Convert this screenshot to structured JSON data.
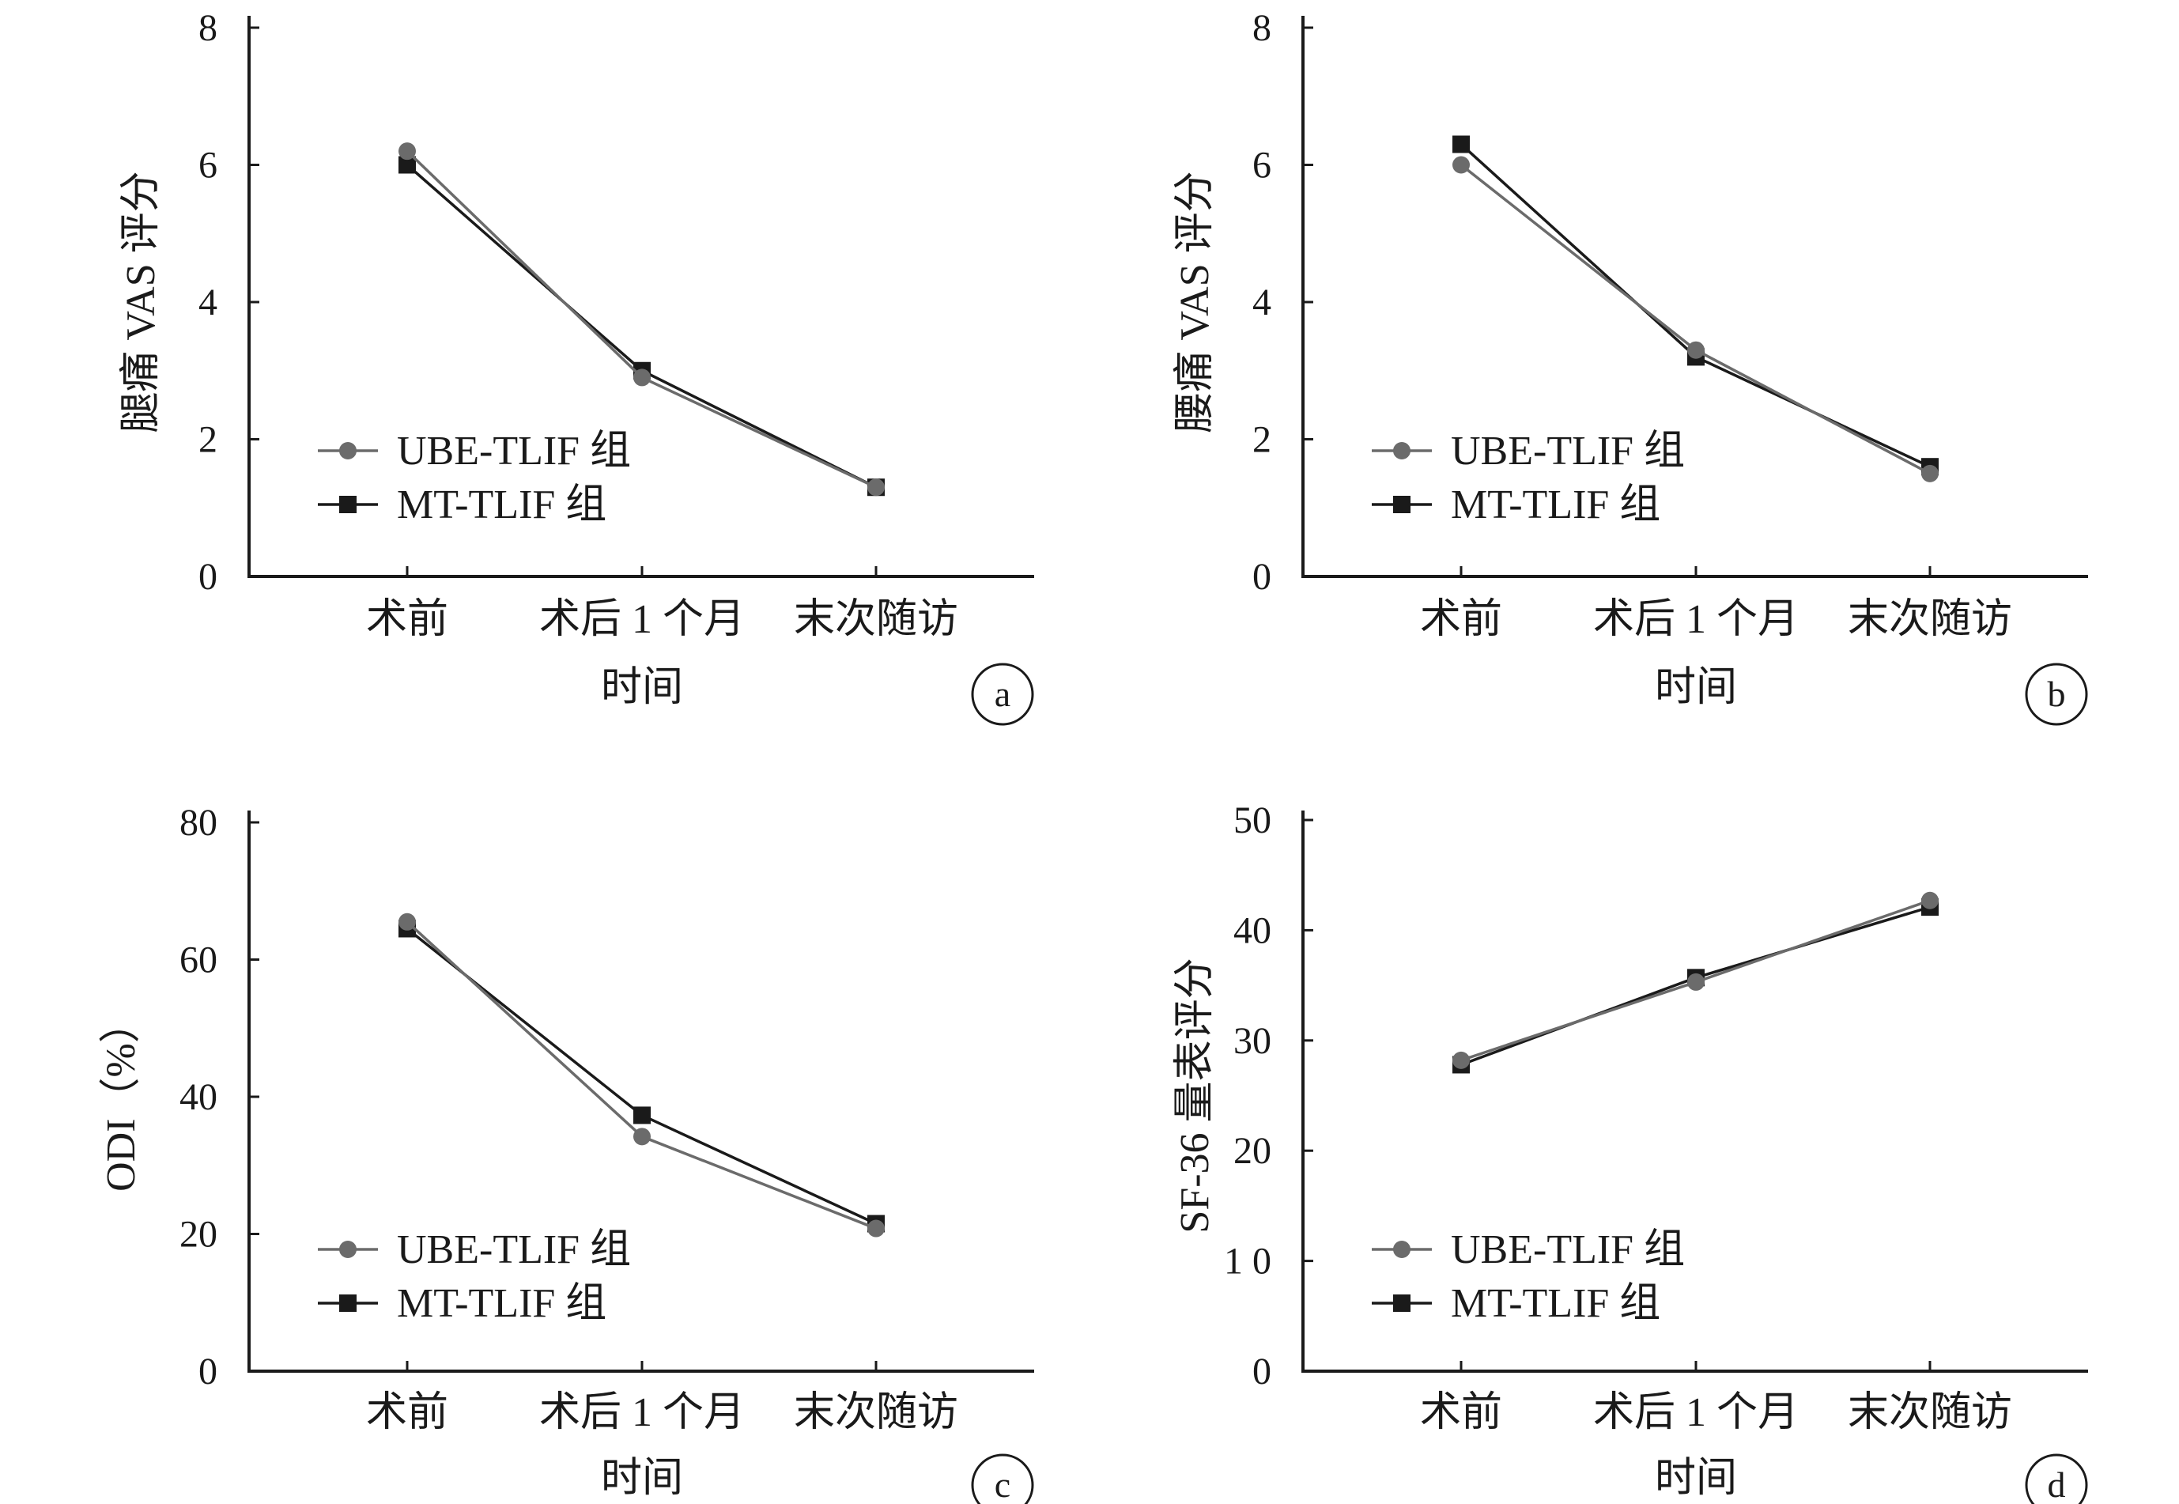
{
  "colors": {
    "axis": "#1a1a1a",
    "series_ube": "#6b6b6b",
    "series_mt": "#1a1a1a"
  },
  "chart_data": [
    {
      "panel": "a",
      "type": "line",
      "categories": [
        "术前",
        "术后 1 个月",
        "末次随访"
      ],
      "xlabel": "时间",
      "ylabel": "腿痛 VAS 评分",
      "ylim": [
        0,
        8
      ],
      "yticks": [
        "0",
        "2",
        "4",
        "6",
        "8"
      ],
      "legend_position": "bottom-left",
      "series": [
        {
          "name": "UBE-TLIF 组",
          "marker": "circle",
          "values": [
            6.2,
            2.9,
            1.3
          ]
        },
        {
          "name": "MT-TLIF 组",
          "marker": "square",
          "values": [
            6.0,
            3.0,
            1.3
          ]
        }
      ]
    },
    {
      "panel": "b",
      "type": "line",
      "categories": [
        "术前",
        "术后 1 个月",
        "末次随访"
      ],
      "xlabel": "时间",
      "ylabel": "腰痛 VAS 评分",
      "ylim": [
        0,
        8
      ],
      "yticks": [
        "0",
        "2",
        "4",
        "6",
        "8"
      ],
      "legend_position": "bottom-left",
      "series": [
        {
          "name": "UBE-TLIF 组",
          "marker": "circle",
          "values": [
            6.0,
            3.3,
            1.5
          ]
        },
        {
          "name": "MT-TLIF 组",
          "marker": "square",
          "values": [
            6.3,
            3.2,
            1.6
          ]
        }
      ]
    },
    {
      "panel": "c",
      "type": "line",
      "categories": [
        "术前",
        "术后 1 个月",
        "末次随访"
      ],
      "xlabel": "时间",
      "ylabel": "ODI（%）",
      "ylim": [
        0,
        80
      ],
      "yticks": [
        "0",
        "20",
        "40",
        "60",
        "80"
      ],
      "legend_position": "bottom-left",
      "series": [
        {
          "name": "UBE-TLIF 组",
          "marker": "circle",
          "values": [
            65.5,
            34.2,
            20.8
          ]
        },
        {
          "name": "MT-TLIF 组",
          "marker": "square",
          "values": [
            64.5,
            37.3,
            21.5
          ]
        }
      ]
    },
    {
      "panel": "d",
      "type": "line",
      "categories": [
        "术前",
        "术后 1 个月",
        "末次随访"
      ],
      "xlabel": "时间",
      "ylabel": "SF-36 量表评分",
      "ylim": [
        0,
        50
      ],
      "yticks": [
        "0",
        "1 0",
        "20",
        "30",
        "40",
        "50"
      ],
      "legend_position": "bottom-left",
      "series": [
        {
          "name": "UBE-TLIF 组",
          "marker": "circle",
          "values": [
            28.2,
            35.3,
            42.7
          ]
        },
        {
          "name": "MT-TLIF 组",
          "marker": "square",
          "values": [
            27.8,
            35.7,
            42.1
          ]
        }
      ]
    }
  ]
}
